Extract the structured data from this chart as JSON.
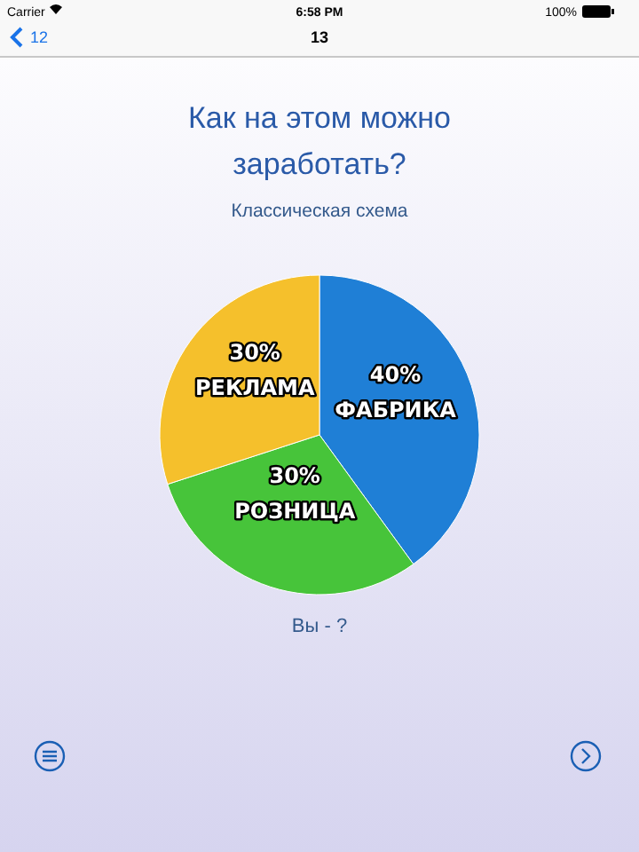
{
  "chart_data": {
    "type": "pie",
    "title": "Как на этом можно заработать?",
    "subtitle": "Классическая схема",
    "categories": [
      "ФАБРИКА",
      "РОЗНИЦА",
      "РЕКЛАМА"
    ],
    "values": [
      40,
      30,
      30
    ],
    "colors": [
      "#1f7fd6",
      "#47c43a",
      "#f5c02c"
    ],
    "value_labels": [
      "40%",
      "30%",
      "30%"
    ],
    "annotations": [
      "Carrier",
      "6:58 PM",
      "100%",
      "12",
      "13",
      "Вы - ?"
    ]
  }
}
